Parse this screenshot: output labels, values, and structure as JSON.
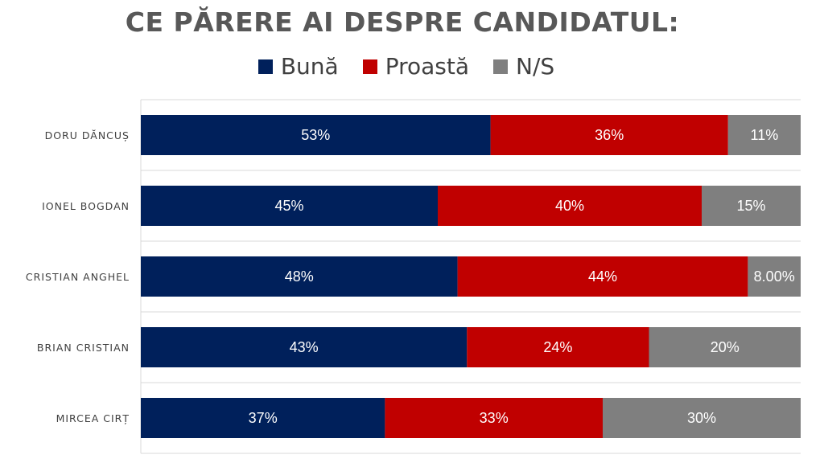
{
  "chart_data": {
    "type": "bar",
    "orientation": "horizontal",
    "stacked": true,
    "title": "CE PĂRERE AI DESPRE CANDIDATUL:",
    "legend_position": "top",
    "categories": [
      "DORU DĂNCUȘ",
      "IONEL BOGDAN",
      "CRISTIAN ANGHEL",
      "BRIAN CRISTIAN",
      "MIRCEA CIRȚ"
    ],
    "series": [
      {
        "name": "Bună",
        "color": "#00205b",
        "values": [
          53,
          45,
          48,
          43,
          37
        ],
        "labels": [
          "53%",
          "45%",
          "48%",
          "43%",
          "37%"
        ]
      },
      {
        "name": "Proastă",
        "color": "#c00000",
        "values": [
          36,
          40,
          44,
          24,
          33
        ],
        "labels": [
          "36%",
          "40%",
          "44%",
          "24%",
          "33%"
        ]
      },
      {
        "name": "N/S",
        "color": "#7f7f7f",
        "values": [
          11,
          15,
          8,
          20,
          30
        ],
        "labels": [
          "11%",
          "15%",
          "8.00%",
          "20%",
          "30%"
        ]
      }
    ]
  }
}
